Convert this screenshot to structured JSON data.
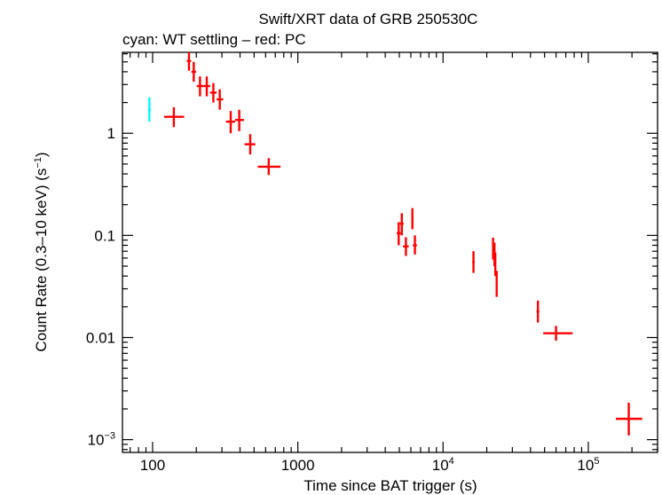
{
  "chart_data": {
    "type": "scatter",
    "title": "Swift/XRT data of GRB 250530C",
    "subtitle": "cyan: WT settling – red: PC",
    "xlabel": "Time since BAT trigger (s)",
    "ylabel_main": "Count Rate (0.3–10 keV) (s",
    "ylabel_sup": "−1",
    "ylabel_end": ")",
    "xscale": "log",
    "yscale": "log",
    "xlim": [
      62,
      300000
    ],
    "ylim": [
      0.00075,
      6.2
    ],
    "grid": false,
    "x_ticks": [
      {
        "value": 100,
        "base": "100",
        "sup": ""
      },
      {
        "value": 1000,
        "base": "1000",
        "sup": ""
      },
      {
        "value": 10000,
        "base": "10",
        "sup": "4"
      },
      {
        "value": 100000,
        "base": "10",
        "sup": "5"
      }
    ],
    "y_ticks": [
      {
        "value": 0.001,
        "base": "10",
        "sup": "−3"
      },
      {
        "value": 0.01,
        "base": "0.01",
        "sup": ""
      },
      {
        "value": 0.1,
        "base": "0.1",
        "sup": ""
      },
      {
        "value": 1,
        "base": "1",
        "sup": ""
      }
    ],
    "colors": {
      "WT settling": "#00ffff",
      "PC": "#ff0000"
    },
    "series": [
      {
        "name": "WT settling",
        "color": "#00ffff",
        "points": [
          {
            "x": 95,
            "xlo": 93,
            "xhi": 97,
            "y": 1.7,
            "ylo": 1.3,
            "yhi": 2.25
          }
        ]
      },
      {
        "name": "PC",
        "color": "#ff0000",
        "points": [
          {
            "x": 140,
            "xlo": 120,
            "xhi": 165,
            "y": 1.45,
            "ylo": 1.15,
            "yhi": 1.8
          },
          {
            "x": 178,
            "xlo": 172,
            "xhi": 184,
            "y": 5.1,
            "ylo": 4.1,
            "yhi": 6.2
          },
          {
            "x": 192,
            "xlo": 185,
            "xhi": 199,
            "y": 4.0,
            "ylo": 3.2,
            "yhi": 5.0
          },
          {
            "x": 212,
            "xlo": 201,
            "xhi": 224,
            "y": 2.9,
            "ylo": 2.3,
            "yhi": 3.6
          },
          {
            "x": 236,
            "xlo": 224,
            "xhi": 249,
            "y": 2.9,
            "ylo": 2.3,
            "yhi": 3.6
          },
          {
            "x": 262,
            "xlo": 249,
            "xhi": 276,
            "y": 2.5,
            "ylo": 2.0,
            "yhi": 3.1
          },
          {
            "x": 290,
            "xlo": 276,
            "xhi": 306,
            "y": 2.15,
            "ylo": 1.7,
            "yhi": 2.7
          },
          {
            "x": 345,
            "xlo": 320,
            "xhi": 370,
            "y": 1.3,
            "ylo": 1.0,
            "yhi": 1.65
          },
          {
            "x": 395,
            "xlo": 370,
            "xhi": 425,
            "y": 1.35,
            "ylo": 1.05,
            "yhi": 1.7
          },
          {
            "x": 470,
            "xlo": 430,
            "xhi": 510,
            "y": 0.78,
            "ylo": 0.62,
            "yhi": 0.98
          },
          {
            "x": 630,
            "xlo": 530,
            "xhi": 760,
            "y": 0.47,
            "ylo": 0.39,
            "yhi": 0.57
          },
          {
            "x": 4950,
            "xlo": 4800,
            "xhi": 5100,
            "y": 0.105,
            "ylo": 0.08,
            "yhi": 0.135
          },
          {
            "x": 5200,
            "xlo": 5050,
            "xhi": 5350,
            "y": 0.13,
            "ylo": 0.1,
            "yhi": 0.165
          },
          {
            "x": 5550,
            "xlo": 5300,
            "xhi": 5800,
            "y": 0.078,
            "ylo": 0.063,
            "yhi": 0.096
          },
          {
            "x": 6150,
            "xlo": 6050,
            "xhi": 6250,
            "y": 0.145,
            "ylo": 0.115,
            "yhi": 0.185
          },
          {
            "x": 6400,
            "xlo": 6200,
            "xhi": 6600,
            "y": 0.08,
            "ylo": 0.065,
            "yhi": 0.1
          },
          {
            "x": 16200,
            "xlo": 15900,
            "xhi": 16500,
            "y": 0.055,
            "ylo": 0.043,
            "yhi": 0.07
          },
          {
            "x": 22100,
            "xlo": 21900,
            "xhi": 22300,
            "y": 0.075,
            "ylo": 0.058,
            "yhi": 0.095
          },
          {
            "x": 22600,
            "xlo": 22400,
            "xhi": 22800,
            "y": 0.065,
            "ylo": 0.05,
            "yhi": 0.085
          },
          {
            "x": 22900,
            "xlo": 22700,
            "xhi": 23100,
            "y": 0.052,
            "ylo": 0.04,
            "yhi": 0.068
          },
          {
            "x": 23400,
            "xlo": 23200,
            "xhi": 23600,
            "y": 0.034,
            "ylo": 0.025,
            "yhi": 0.045
          },
          {
            "x": 45000,
            "xlo": 44000,
            "xhi": 46000,
            "y": 0.018,
            "ylo": 0.014,
            "yhi": 0.023
          },
          {
            "x": 60000,
            "xlo": 49000,
            "xhi": 78000,
            "y": 0.011,
            "ylo": 0.0093,
            "yhi": 0.013
          },
          {
            "x": 190000,
            "xlo": 155000,
            "xhi": 235000,
            "y": 0.0016,
            "ylo": 0.0011,
            "yhi": 0.0023
          }
        ]
      }
    ]
  }
}
